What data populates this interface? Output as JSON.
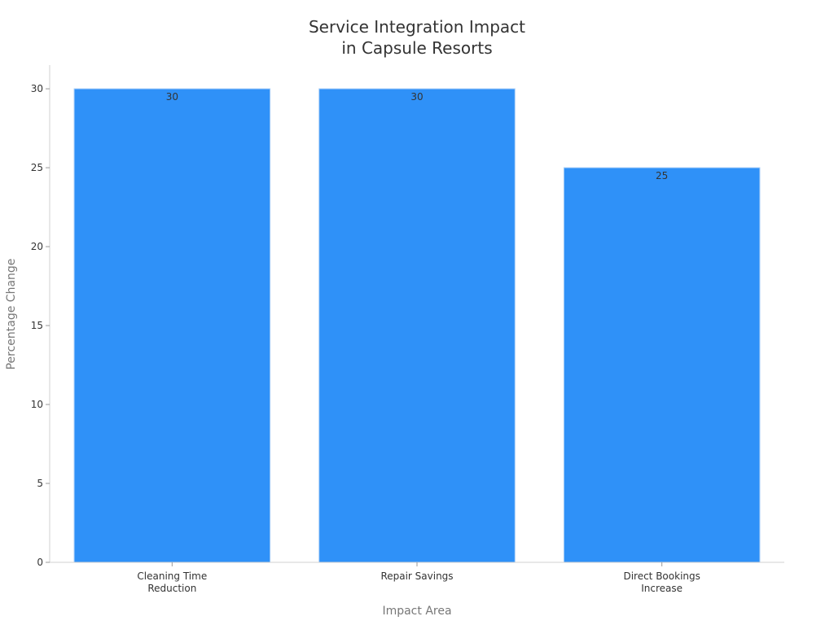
{
  "chart_data": {
    "type": "bar",
    "title": [
      "Service Integration Impact",
      "in Capsule Resorts"
    ],
    "xlabel": "Impact Area",
    "ylabel": "Percentage Change",
    "categories": [
      [
        "Cleaning Time",
        "Reduction"
      ],
      [
        "Repair Savings"
      ],
      [
        "Direct Bookings",
        "Increase"
      ]
    ],
    "values": [
      30,
      30,
      25
    ],
    "ylim": [
      0,
      31.5
    ],
    "yticks": [
      0,
      5,
      10,
      15,
      20,
      25,
      30
    ],
    "grid": false,
    "legend": "none",
    "bar_color": "#2f91f8",
    "bar_edge_color": "#a6cdf7"
  }
}
